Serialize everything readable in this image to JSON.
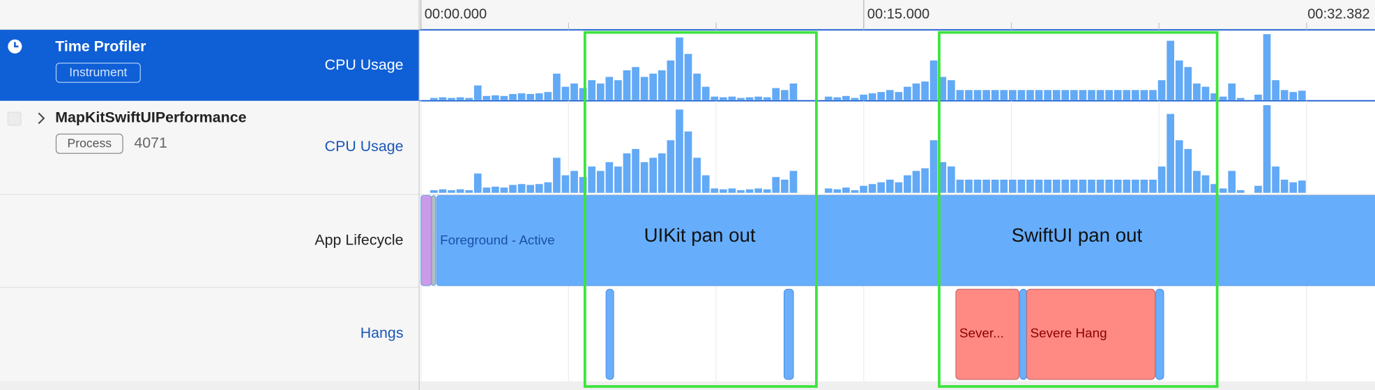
{
  "timeline": {
    "ticks": [
      {
        "value": 0,
        "label": "00:00.000"
      },
      {
        "value": 15,
        "label": "00:15.000"
      },
      {
        "value": 32.382,
        "label": "00:32.382"
      }
    ]
  },
  "tracks": [
    {
      "title": "Time Profiler",
      "badge": "Instrument",
      "graph_label": "CPU Usage"
    },
    {
      "title": "MapKitSwiftUIPerformance",
      "badge": "Process",
      "pid": "4071",
      "graph_label": "CPU Usage"
    },
    {
      "graph_label": "App Lifecycle"
    },
    {
      "graph_label": "Hangs"
    }
  ],
  "cpu_usage": {
    "start_s": 0.3,
    "end_s": 30,
    "values": [
      3,
      4,
      3,
      4,
      3,
      22,
      6,
      7,
      6,
      9,
      10,
      9,
      10,
      12,
      40,
      20,
      25,
      18,
      30,
      25,
      35,
      30,
      45,
      50,
      35,
      40,
      45,
      60,
      95,
      70,
      40,
      20,
      5,
      4,
      5,
      3,
      4,
      5,
      4,
      18,
      15,
      25,
      0,
      0,
      0,
      5,
      4,
      6,
      3,
      8,
      10,
      12,
      15,
      12,
      20,
      25,
      28,
      60,
      35,
      30,
      15,
      15,
      15,
      15,
      15,
      15,
      15,
      15,
      15,
      15,
      15,
      15,
      15,
      15,
      15,
      15,
      15,
      15,
      15,
      15,
      15,
      15,
      15,
      30,
      90,
      60,
      50,
      25,
      20,
      10,
      5,
      25,
      3,
      0,
      8,
      100,
      30,
      15,
      12,
      14
    ]
  },
  "lifecycle": [
    {
      "start_s": 0,
      "end_s": 0.36,
      "color": "#c99be8"
    },
    {
      "start_s": 0.36,
      "end_s": 0.5,
      "color": "#b4bcc4"
    },
    {
      "start_s": 0.53,
      "end_s": 32.382,
      "color": "#66aefc",
      "label": "Foreground - Active"
    }
  ],
  "hangs": [
    {
      "start_s": 6.27,
      "end_s": 6.53,
      "color": "#6aaefc"
    },
    {
      "start_s": 12.3,
      "end_s": 12.62,
      "color": "#6aaefc"
    },
    {
      "start_s": 18.12,
      "end_s": 20.26,
      "color": "#ff8a84",
      "label": "Sever..."
    },
    {
      "start_s": 20.29,
      "end_s": 20.52,
      "color": "#6aaefc"
    },
    {
      "start_s": 20.52,
      "end_s": 24.86,
      "color": "#ff8a84",
      "label": "Severe Hang"
    },
    {
      "start_s": 24.89,
      "end_s": 25.16,
      "color": "#6aaefc"
    }
  ],
  "annotations": [
    "UIKit pan out",
    "SwiftUI pan out"
  ]
}
